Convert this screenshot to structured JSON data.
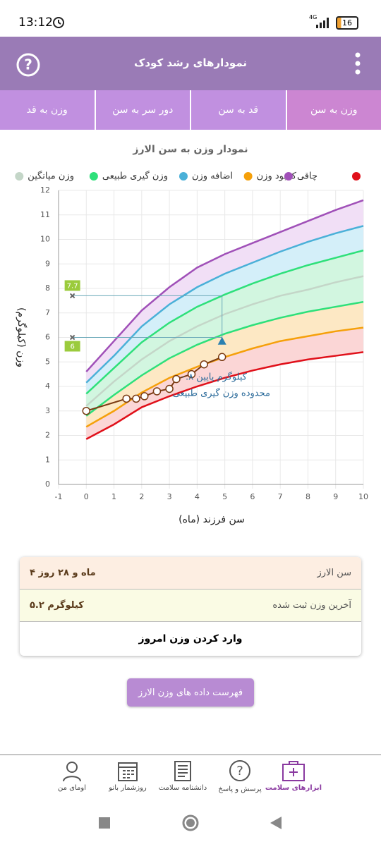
{
  "status": {
    "time": "13:12",
    "network": "4G",
    "battery": "16"
  },
  "header": {
    "title": "نمودارهای رشد کودک"
  },
  "tabs": [
    "وزن به قد",
    "دور سر به سن",
    "قد به سن",
    "وزن به سن"
  ],
  "chart_data": {
    "type": "line",
    "title": "نمودار وزن به سن الارز",
    "xlabel": "سن فرزند (ماه)",
    "ylabel": "وزن (کیلوگرم)",
    "xlim": [
      -1,
      10
    ],
    "ylim": [
      0,
      12
    ],
    "xticks": [
      -1,
      0,
      1,
      2,
      3,
      4,
      5,
      6,
      7,
      8,
      9,
      10
    ],
    "yticks": [
      0,
      1,
      2,
      3,
      4,
      5,
      6,
      7,
      8,
      9,
      10,
      11,
      12
    ],
    "grid": true,
    "x": [
      0,
      1,
      2,
      3,
      4,
      5,
      6,
      7,
      8,
      9,
      10
    ],
    "series": [
      {
        "color": "#e0101a",
        "values": [
          1.85,
          2.45,
          3.15,
          3.6,
          4.0,
          4.35,
          4.65,
          4.9,
          5.1,
          5.25,
          5.4
        ]
      },
      {
        "name": "کمبود وزن",
        "color": "#f5a00a",
        "fill": "#fbd6d6",
        "values": [
          2.35,
          3.0,
          3.75,
          4.35,
          4.8,
          5.2,
          5.55,
          5.85,
          6.05,
          6.25,
          6.4
        ]
      },
      {
        "color": "#2ee07a",
        "fill": "#fde8c4",
        "values": [
          2.8,
          3.65,
          4.45,
          5.15,
          5.7,
          6.15,
          6.5,
          6.8,
          7.05,
          7.25,
          7.45
        ]
      },
      {
        "name": "وزن میانگین",
        "color": "#c4d6c8",
        "fill": "#d2f6e0",
        "values": [
          3.2,
          4.2,
          5.1,
          5.85,
          6.45,
          6.95,
          7.35,
          7.7,
          7.95,
          8.25,
          8.5
        ]
      },
      {
        "name": "وزن گیری طبیعی",
        "color": "#2ee07a",
        "fill": "#d2f6e0",
        "values": [
          3.7,
          4.75,
          5.8,
          6.6,
          7.25,
          7.75,
          8.2,
          8.6,
          8.95,
          9.25,
          9.55
        ]
      },
      {
        "name": "اضافه وزن",
        "color": "#4ab0d8",
        "fill": "#d4eff9",
        "values": [
          4.15,
          5.25,
          6.45,
          7.35,
          8.05,
          8.6,
          9.05,
          9.5,
          9.9,
          10.25,
          10.55
        ]
      },
      {
        "name": "چاقی",
        "color": "#a050b8",
        "fill": "#f1dff6",
        "values": [
          4.6,
          5.85,
          7.1,
          8.05,
          8.85,
          9.4,
          9.85,
          10.3,
          10.75,
          11.2,
          11.6
        ]
      }
    ],
    "child": {
      "color": "#7a3a12",
      "x": [
        0,
        1.45,
        1.8,
        2.1,
        2.55,
        3.0,
        3.25,
        3.8,
        4.25,
        4.9
      ],
      "values": [
        3.0,
        3.5,
        3.5,
        3.6,
        3.8,
        3.9,
        4.3,
        4.5,
        4.9,
        5.2
      ]
    },
    "range": {
      "x": -0.5,
      "end_x": 4.9,
      "values": [
        7.7,
        6
      ]
    },
    "prediction": {
      "x": 4.9,
      "y": 5.85
    },
    "annotations": [
      "۰.۸ کیلوگرم پایین",
      "محدوده وزن گیری طبیعی"
    ]
  },
  "card": {
    "age_label": "سن الارز",
    "age": "۴ ماه و ۲۸ روز",
    "weight_label": "آخرین وزن ثبت شده",
    "weight": "۵.۲ کیلوگرم",
    "action": "وارد کردن وزن امروز"
  },
  "button": "فهرست داده های وزن الارز",
  "nav": [
    "اومای من",
    "روزشمار بانو",
    "دانشنامه سلامت",
    "پرسش و پاسخ",
    "ابزارهای سلامت"
  ]
}
